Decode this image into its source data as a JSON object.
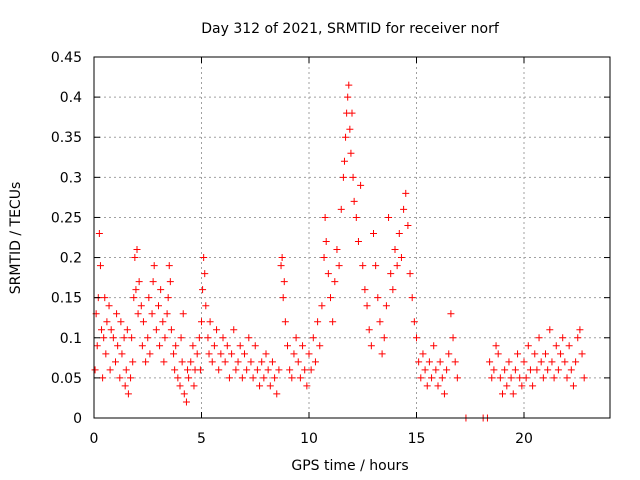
{
  "chart_data": {
    "type": "scatter",
    "title": "Day 312 of 2021, SRMTID for receiver norf",
    "xlabel": "GPS time / hours",
    "ylabel": "SRMTID / TECUs",
    "xlim": [
      0,
      24
    ],
    "ylim": [
      0,
      0.45
    ],
    "grid": true,
    "marker": "+",
    "color": "#ff0000",
    "x_ticks": [
      0,
      5,
      10,
      15,
      20
    ],
    "y_ticks": [
      0,
      0.05,
      0.1,
      0.15,
      0.2,
      0.25,
      0.3,
      0.35,
      0.4,
      0.45
    ],
    "x_tick_labels": [
      "0",
      "5",
      "10",
      "15",
      "20"
    ],
    "y_tick_labels": [
      "0",
      "0.05",
      "0.1",
      "0.15",
      "0.2",
      "0.25",
      "0.3",
      "0.35",
      "0.4",
      "0.45"
    ],
    "series": [
      {
        "name": "SRMTID",
        "points": [
          [
            0.05,
            0.06
          ],
          [
            0.1,
            0.13
          ],
          [
            0.15,
            0.09
          ],
          [
            0.2,
            0.15
          ],
          [
            0.25,
            0.23
          ],
          [
            0.3,
            0.19
          ],
          [
            0.35,
            0.11
          ],
          [
            0.4,
            0.05
          ],
          [
            0.45,
            0.1
          ],
          [
            0.5,
            0.15
          ],
          [
            0.55,
            0.08
          ],
          [
            0.6,
            0.12
          ],
          [
            0.7,
            0.14
          ],
          [
            0.75,
            0.06
          ],
          [
            0.8,
            0.11
          ],
          [
            0.9,
            0.1
          ],
          [
            1.0,
            0.07
          ],
          [
            1.05,
            0.13
          ],
          [
            1.1,
            0.09
          ],
          [
            1.2,
            0.05
          ],
          [
            1.25,
            0.12
          ],
          [
            1.3,
            0.08
          ],
          [
            1.4,
            0.1
          ],
          [
            1.45,
            0.04
          ],
          [
            1.5,
            0.06
          ],
          [
            1.55,
            0.11
          ],
          [
            1.6,
            0.03
          ],
          [
            1.7,
            0.05
          ],
          [
            1.75,
            0.1
          ],
          [
            1.8,
            0.07
          ],
          [
            1.85,
            0.15
          ],
          [
            1.9,
            0.2
          ],
          [
            1.95,
            0.16
          ],
          [
            2.0,
            0.21
          ],
          [
            2.05,
            0.13
          ],
          [
            2.1,
            0.17
          ],
          [
            2.2,
            0.14
          ],
          [
            2.25,
            0.09
          ],
          [
            2.3,
            0.12
          ],
          [
            2.4,
            0.07
          ],
          [
            2.5,
            0.1
          ],
          [
            2.55,
            0.15
          ],
          [
            2.6,
            0.08
          ],
          [
            2.7,
            0.13
          ],
          [
            2.75,
            0.17
          ],
          [
            2.8,
            0.19
          ],
          [
            2.9,
            0.11
          ],
          [
            3.0,
            0.14
          ],
          [
            3.05,
            0.09
          ],
          [
            3.1,
            0.16
          ],
          [
            3.2,
            0.12
          ],
          [
            3.25,
            0.07
          ],
          [
            3.3,
            0.1
          ],
          [
            3.4,
            0.13
          ],
          [
            3.45,
            0.15
          ],
          [
            3.5,
            0.19
          ],
          [
            3.55,
            0.17
          ],
          [
            3.6,
            0.11
          ],
          [
            3.7,
            0.08
          ],
          [
            3.75,
            0.06
          ],
          [
            3.8,
            0.09
          ],
          [
            3.9,
            0.05
          ],
          [
            4.0,
            0.04
          ],
          [
            4.05,
            0.1
          ],
          [
            4.1,
            0.07
          ],
          [
            4.15,
            0.13
          ],
          [
            4.2,
            0.03
          ],
          [
            4.3,
            0.02
          ],
          [
            4.35,
            0.06
          ],
          [
            4.4,
            0.05
          ],
          [
            4.5,
            0.07
          ],
          [
            4.6,
            0.09
          ],
          [
            4.65,
            0.04
          ],
          [
            4.7,
            0.06
          ],
          [
            4.8,
            0.08
          ],
          [
            4.9,
            0.1
          ],
          [
            4.95,
            0.06
          ],
          [
            5.0,
            0.12
          ],
          [
            5.05,
            0.16
          ],
          [
            5.1,
            0.2
          ],
          [
            5.15,
            0.18
          ],
          [
            5.2,
            0.14
          ],
          [
            5.3,
            0.1
          ],
          [
            5.35,
            0.08
          ],
          [
            5.4,
            0.12
          ],
          [
            5.5,
            0.07
          ],
          [
            5.6,
            0.09
          ],
          [
            5.7,
            0.11
          ],
          [
            5.8,
            0.06
          ],
          [
            5.9,
            0.08
          ],
          [
            6.0,
            0.1
          ],
          [
            6.1,
            0.07
          ],
          [
            6.2,
            0.09
          ],
          [
            6.3,
            0.05
          ],
          [
            6.4,
            0.08
          ],
          [
            6.5,
            0.11
          ],
          [
            6.6,
            0.06
          ],
          [
            6.7,
            0.07
          ],
          [
            6.8,
            0.09
          ],
          [
            6.9,
            0.05
          ],
          [
            7.0,
            0.08
          ],
          [
            7.1,
            0.06
          ],
          [
            7.2,
            0.1
          ],
          [
            7.3,
            0.07
          ],
          [
            7.4,
            0.05
          ],
          [
            7.5,
            0.09
          ],
          [
            7.6,
            0.06
          ],
          [
            7.7,
            0.04
          ],
          [
            7.8,
            0.07
          ],
          [
            7.9,
            0.05
          ],
          [
            8.0,
            0.08
          ],
          [
            8.1,
            0.06
          ],
          [
            8.2,
            0.04
          ],
          [
            8.3,
            0.07
          ],
          [
            8.4,
            0.05
          ],
          [
            8.5,
            0.03
          ],
          [
            8.6,
            0.06
          ],
          [
            8.7,
            0.19
          ],
          [
            8.75,
            0.2
          ],
          [
            8.8,
            0.15
          ],
          [
            8.85,
            0.17
          ],
          [
            8.9,
            0.12
          ],
          [
            9.0,
            0.09
          ],
          [
            9.1,
            0.06
          ],
          [
            9.2,
            0.05
          ],
          [
            9.3,
            0.08
          ],
          [
            9.4,
            0.1
          ],
          [
            9.5,
            0.07
          ],
          [
            9.6,
            0.05
          ],
          [
            9.7,
            0.09
          ],
          [
            9.8,
            0.06
          ],
          [
            9.9,
            0.04
          ],
          [
            10.0,
            0.08
          ],
          [
            10.1,
            0.06
          ],
          [
            10.2,
            0.1
          ],
          [
            10.3,
            0.07
          ],
          [
            10.4,
            0.12
          ],
          [
            10.5,
            0.09
          ],
          [
            10.6,
            0.14
          ],
          [
            10.7,
            0.2
          ],
          [
            10.75,
            0.25
          ],
          [
            10.8,
            0.22
          ],
          [
            10.9,
            0.18
          ],
          [
            11.0,
            0.15
          ],
          [
            11.1,
            0.12
          ],
          [
            11.2,
            0.17
          ],
          [
            11.3,
            0.21
          ],
          [
            11.4,
            0.19
          ],
          [
            11.5,
            0.26
          ],
          [
            11.6,
            0.3
          ],
          [
            11.65,
            0.32
          ],
          [
            11.7,
            0.35
          ],
          [
            11.75,
            0.38
          ],
          [
            11.8,
            0.4
          ],
          [
            11.85,
            0.415
          ],
          [
            11.9,
            0.36
          ],
          [
            11.95,
            0.33
          ],
          [
            12.0,
            0.38
          ],
          [
            12.05,
            0.3
          ],
          [
            12.1,
            0.27
          ],
          [
            12.2,
            0.25
          ],
          [
            12.3,
            0.22
          ],
          [
            12.4,
            0.29
          ],
          [
            12.5,
            0.19
          ],
          [
            12.6,
            0.16
          ],
          [
            12.7,
            0.14
          ],
          [
            12.8,
            0.11
          ],
          [
            12.9,
            0.09
          ],
          [
            13.0,
            0.23
          ],
          [
            13.1,
            0.19
          ],
          [
            13.2,
            0.15
          ],
          [
            13.3,
            0.12
          ],
          [
            13.4,
            0.08
          ],
          [
            13.5,
            0.1
          ],
          [
            13.6,
            0.14
          ],
          [
            13.7,
            0.25
          ],
          [
            13.8,
            0.18
          ],
          [
            13.9,
            0.16
          ],
          [
            14.0,
            0.21
          ],
          [
            14.1,
            0.19
          ],
          [
            14.2,
            0.23
          ],
          [
            14.3,
            0.2
          ],
          [
            14.4,
            0.26
          ],
          [
            14.5,
            0.28
          ],
          [
            14.6,
            0.24
          ],
          [
            14.7,
            0.18
          ],
          [
            14.8,
            0.15
          ],
          [
            14.9,
            0.12
          ],
          [
            15.0,
            0.1
          ],
          [
            15.1,
            0.07
          ],
          [
            15.2,
            0.05
          ],
          [
            15.3,
            0.08
          ],
          [
            15.4,
            0.06
          ],
          [
            15.5,
            0.04
          ],
          [
            15.6,
            0.07
          ],
          [
            15.7,
            0.05
          ],
          [
            15.8,
            0.09
          ],
          [
            15.9,
            0.06
          ],
          [
            16.0,
            0.04
          ],
          [
            16.1,
            0.07
          ],
          [
            16.2,
            0.05
          ],
          [
            16.3,
            0.03
          ],
          [
            16.4,
            0.06
          ],
          [
            16.5,
            0.08
          ],
          [
            16.6,
            0.13
          ],
          [
            16.7,
            0.1
          ],
          [
            16.8,
            0.07
          ],
          [
            16.9,
            0.05
          ],
          [
            17.3,
            0.0
          ],
          [
            18.1,
            0.0
          ],
          [
            18.3,
            0.0
          ],
          [
            18.4,
            0.07
          ],
          [
            18.5,
            0.05
          ],
          [
            18.6,
            0.06
          ],
          [
            18.7,
            0.09
          ],
          [
            18.8,
            0.08
          ],
          [
            18.9,
            0.05
          ],
          [
            19.0,
            0.03
          ],
          [
            19.1,
            0.06
          ],
          [
            19.2,
            0.04
          ],
          [
            19.3,
            0.07
          ],
          [
            19.4,
            0.05
          ],
          [
            19.5,
            0.03
          ],
          [
            19.6,
            0.06
          ],
          [
            19.7,
            0.08
          ],
          [
            19.8,
            0.05
          ],
          [
            19.9,
            0.04
          ],
          [
            20.0,
            0.07
          ],
          [
            20.1,
            0.05
          ],
          [
            20.2,
            0.09
          ],
          [
            20.3,
            0.06
          ],
          [
            20.4,
            0.04
          ],
          [
            20.5,
            0.08
          ],
          [
            20.6,
            0.06
          ],
          [
            20.7,
            0.1
          ],
          [
            20.8,
            0.07
          ],
          [
            20.9,
            0.05
          ],
          [
            21.0,
            0.08
          ],
          [
            21.1,
            0.06
          ],
          [
            21.2,
            0.11
          ],
          [
            21.3,
            0.07
          ],
          [
            21.4,
            0.05
          ],
          [
            21.5,
            0.09
          ],
          [
            21.6,
            0.06
          ],
          [
            21.7,
            0.08
          ],
          [
            21.8,
            0.1
          ],
          [
            21.9,
            0.07
          ],
          [
            22.0,
            0.05
          ],
          [
            22.1,
            0.09
          ],
          [
            22.2,
            0.06
          ],
          [
            22.3,
            0.04
          ],
          [
            22.4,
            0.07
          ],
          [
            22.5,
            0.1
          ],
          [
            22.6,
            0.11
          ],
          [
            22.7,
            0.08
          ],
          [
            22.8,
            0.05
          ]
        ]
      }
    ]
  }
}
